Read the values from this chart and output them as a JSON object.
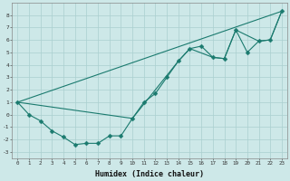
{
  "xlabel": "Humidex (Indice chaleur)",
  "xlim": [
    -0.5,
    23.5
  ],
  "ylim": [
    -3.5,
    9.0
  ],
  "line_color": "#1a7a6e",
  "bg_color": "#cde8e8",
  "grid_color": "#aacfcf",
  "line1_x": [
    0,
    1,
    2,
    3,
    4,
    5,
    6,
    7,
    8,
    9,
    10,
    11,
    12,
    13,
    14,
    15,
    16,
    17,
    18,
    19,
    20,
    21,
    22,
    23
  ],
  "line1_y": [
    1.0,
    0.0,
    -0.5,
    -1.3,
    -1.8,
    -2.4,
    -2.3,
    -2.3,
    -1.7,
    -1.7,
    -0.3,
    1.0,
    1.7,
    3.0,
    4.3,
    5.3,
    5.5,
    4.6,
    4.5,
    6.8,
    5.0,
    5.9,
    6.0,
    8.3
  ],
  "line2_x": [
    0,
    23
  ],
  "line2_y": [
    1.0,
    8.3
  ],
  "line3_x": [
    0,
    10,
    14,
    15,
    17,
    18,
    19,
    21,
    22,
    23
  ],
  "line3_y": [
    1.0,
    -0.3,
    4.3,
    5.3,
    4.6,
    4.5,
    6.8,
    5.9,
    6.0,
    8.3
  ],
  "yticks": [
    -3,
    -2,
    -1,
    0,
    1,
    2,
    3,
    4,
    5,
    6,
    7,
    8
  ],
  "xticks": [
    0,
    1,
    2,
    3,
    4,
    5,
    6,
    7,
    8,
    9,
    10,
    11,
    12,
    13,
    14,
    15,
    16,
    17,
    18,
    19,
    20,
    21,
    22,
    23
  ]
}
